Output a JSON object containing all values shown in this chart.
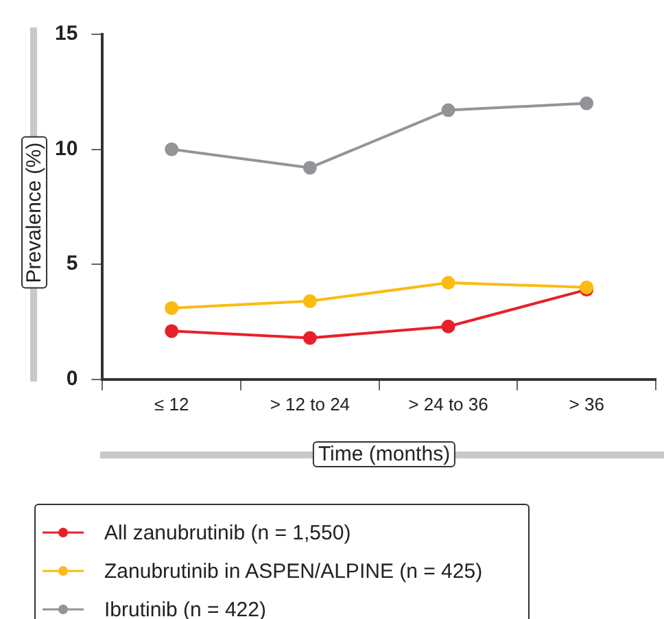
{
  "chart_data": {
    "type": "line",
    "xlabel": "Time (months)",
    "ylabel": "Prevalence (%)",
    "categories": [
      "≤ 12",
      "> 12 to 24",
      "> 24 to 36",
      "> 36"
    ],
    "ylim": [
      0,
      15
    ],
    "yticks": [
      0,
      5,
      10,
      15
    ],
    "grid": false,
    "legend": "bottom left",
    "marker": "circle",
    "line_style": "solid",
    "series": [
      {
        "name": "All zanubrutinib (n = 1,550)",
        "color": "#e8202a",
        "values": [
          2.1,
          1.8,
          2.3,
          3.9
        ]
      },
      {
        "name": "Zanubrutinib in ASPEN/ALPINE (n = 425)",
        "color": "#fbbb10",
        "values": [
          3.1,
          3.4,
          4.2,
          4.0
        ]
      },
      {
        "name": "Ibrutinib (n = 422)",
        "color": "#929497",
        "values": [
          10.0,
          9.2,
          11.7,
          12.0
        ]
      }
    ]
  }
}
